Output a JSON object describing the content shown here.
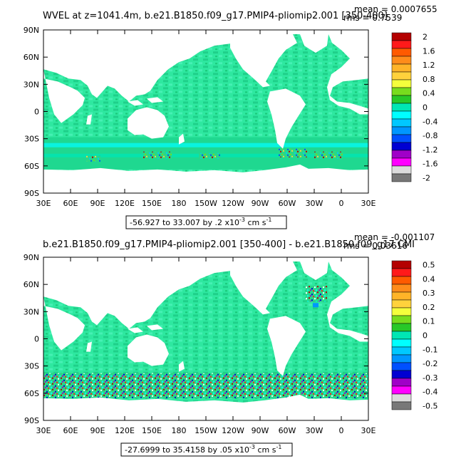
{
  "panels": [
    {
      "title": "WVEL at z=1041.4m, b.e21.B1850.f09_g17.PMIP4-pliomip2.001 [350-400]",
      "mean": "mean = 0.0007655",
      "rms": "rms = 0.7539",
      "range_text": "-56.927 to 33.007 by .2 x10",
      "range_exp": "-3",
      "range_unit": " cm s",
      "range_unit_exp": "-1",
      "y_ticks": [
        "90N",
        "60N",
        "30N",
        "0",
        "30S",
        "60S",
        "90S"
      ],
      "x_ticks": [
        "30E",
        "60E",
        "90E",
        "120E",
        "150E",
        "180",
        "150W",
        "120W",
        "90W",
        "60W",
        "30W",
        "0",
        "30E"
      ],
      "colorbar_labels": [
        "2",
        "1.6",
        "1.2",
        "0.8",
        "0.4",
        "0",
        "-0.4",
        "-0.8",
        "-1.2",
        "-1.6",
        "-2"
      ]
    },
    {
      "title": "b.e21.B1850.f09_g17.PMIP4-pliomip2.001 [350-400] - b.e21.B1850.f09_g17.CMI",
      "mean": "mean = -0.001107",
      "rms": "rms = 0.03616",
      "range_text": "-27.6999 to 35.4158 by .05 x10",
      "range_exp": "-3",
      "range_unit": " cm s",
      "range_unit_exp": "-1",
      "y_ticks": [
        "90N",
        "60N",
        "30N",
        "0",
        "30S",
        "60S",
        "90S"
      ],
      "x_ticks": [
        "30E",
        "60E",
        "90E",
        "120E",
        "150E",
        "180",
        "150W",
        "120W",
        "90W",
        "60W",
        "30W",
        "0",
        "30E"
      ],
      "colorbar_labels": [
        "0.5",
        "0.4",
        "0.3",
        "0.2",
        "0.1",
        "0",
        "-0.1",
        "-0.2",
        "-0.3",
        "-0.4",
        "-0.5"
      ]
    }
  ],
  "colorbar_colors": [
    "#b40000",
    "#ff1a1a",
    "#ff5a00",
    "#ff8c1a",
    "#ffb428",
    "#ffd23c",
    "#f5ff3c",
    "#78dc1e",
    "#28c828",
    "#00e6b4",
    "#00ffff",
    "#00c8ff",
    "#0096ff",
    "#0050ff",
    "#0000d2",
    "#a000c8",
    "#ff00ff",
    "#dcdcdc",
    "#787878"
  ],
  "land_color": "#ffffff",
  "ocean_color": "#28e69a"
}
